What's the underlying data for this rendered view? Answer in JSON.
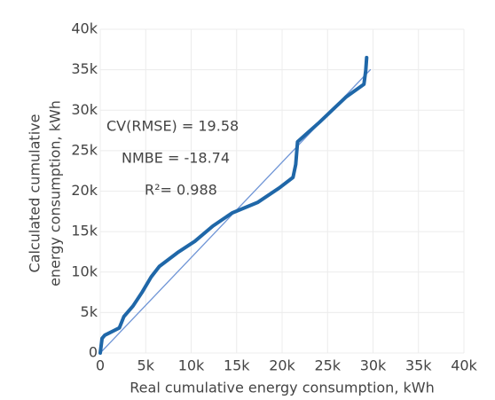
{
  "chart_data": {
    "type": "line",
    "xlabel": "Real cumulative energy consumption, kWh",
    "ylabel": [
      "Calculated cumulative",
      "energy consumption, kWh"
    ],
    "annotations": [
      "CV(RMSE) = 19.58",
      "NMBE = -18.74",
      "R²= 0.988"
    ],
    "xlim": [
      0,
      40000
    ],
    "ylim": [
      0,
      40000
    ],
    "xticks": [
      0,
      {
        "value": 5000,
        "label": "5k"
      },
      {
        "value": 10000,
        "label": "10k"
      },
      {
        "value": 15000,
        "label": "15k"
      },
      {
        "value": 20000,
        "label": "20k"
      },
      {
        "value": 25000,
        "label": "25k"
      },
      {
        "value": 30000,
        "label": "30k"
      },
      {
        "value": 35000,
        "label": "35k"
      },
      {
        "value": 40000,
        "label": "40k"
      }
    ],
    "yticks": [
      0,
      {
        "value": 5000,
        "label": "5k"
      },
      {
        "value": 10000,
        "label": "10k"
      },
      {
        "value": 15000,
        "label": "15k"
      },
      {
        "value": 20000,
        "label": "20k"
      },
      {
        "value": 25000,
        "label": "25k"
      },
      {
        "value": 30000,
        "label": "30k"
      },
      {
        "value": 35000,
        "label": "35k"
      },
      {
        "value": 40000,
        "label": "40k"
      }
    ],
    "grid": true,
    "series": [
      {
        "color": "#6f95d6",
        "width": 1.3,
        "x": [
          0,
          29700
        ],
        "values": [
          0,
          35000
        ]
      },
      {
        "color": "#1f67a8",
        "width": 4,
        "x": [
          0,
          200,
          500,
          2100,
          2600,
          3600,
          4600,
          5600,
          6500,
          8500,
          10400,
          12400,
          14500,
          17300,
          19700,
          21200,
          21500,
          21700,
          22600,
          24100,
          27000,
          29000,
          29200,
          29300
        ],
        "values": [
          0,
          1800,
          2200,
          3100,
          4500,
          5800,
          7500,
          9400,
          10700,
          12400,
          13800,
          15700,
          17300,
          18600,
          20400,
          21700,
          23300,
          26100,
          27000,
          28500,
          31600,
          33200,
          34900,
          36500
        ]
      }
    ]
  }
}
